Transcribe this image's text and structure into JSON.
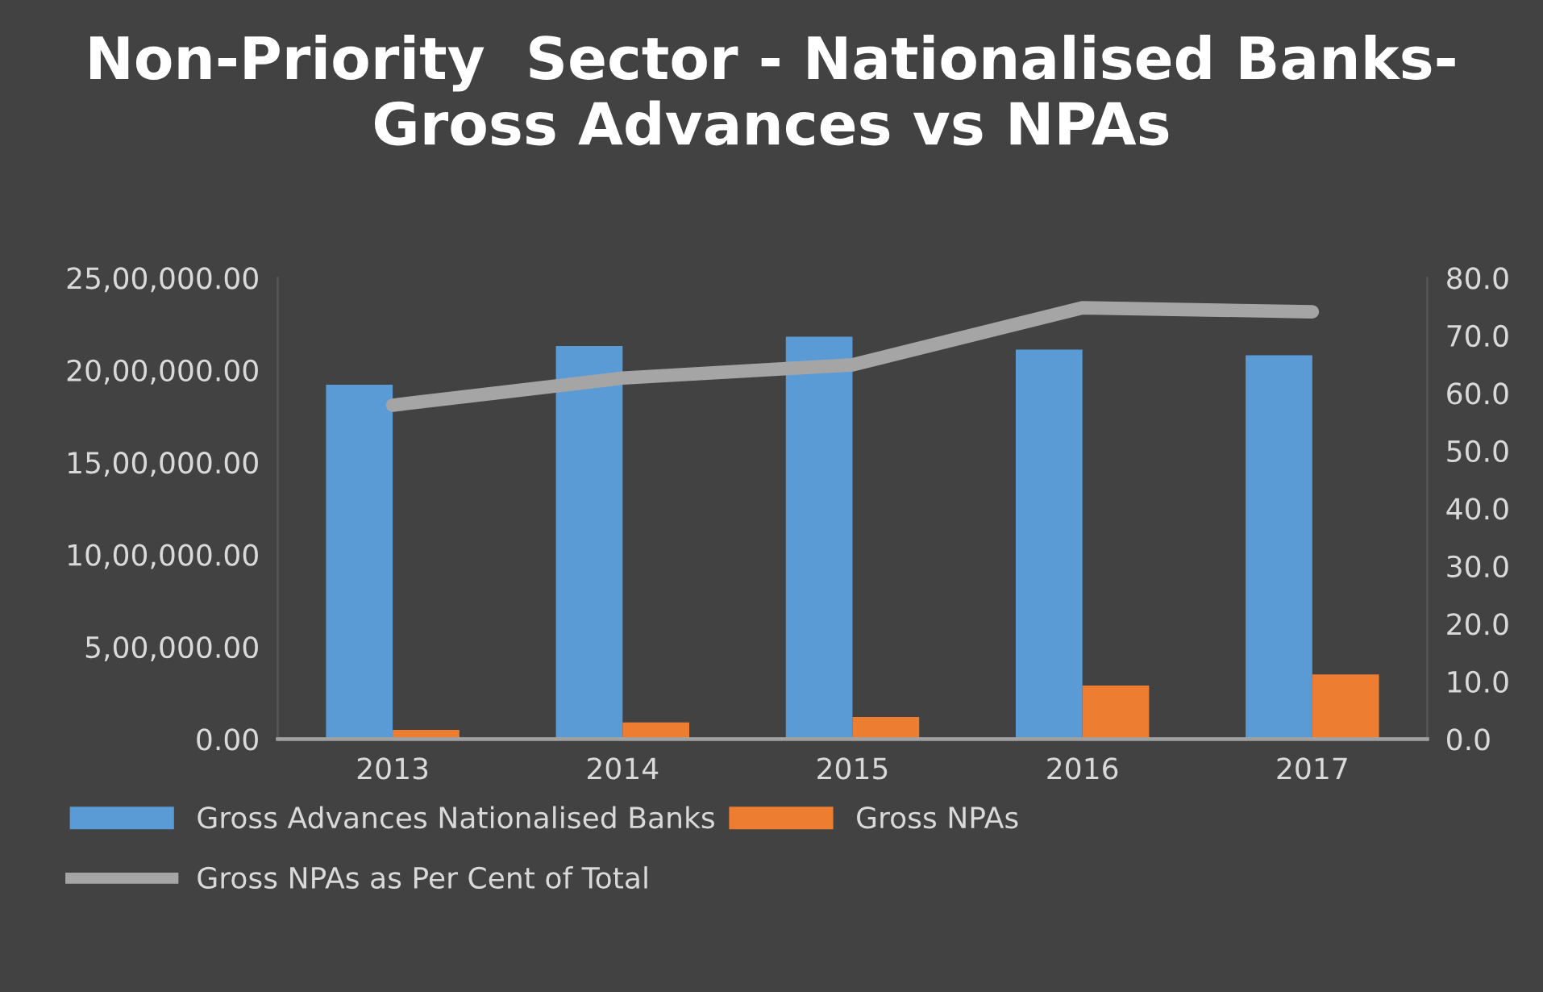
{
  "chart_data": {
    "type": "bar",
    "title": "Non-Priority  Sector - Nationalised Banks- Gross Advances vs NPAs",
    "categories": [
      "2013",
      "2014",
      "2015",
      "2016",
      "2017"
    ],
    "series": [
      {
        "name": "Gross Advances Nationalised Banks",
        "color": "#5b9bd5",
        "values": [
          1920000,
          2130000,
          2180000,
          2110000,
          2080000
        ]
      },
      {
        "name": "Gross NPAs",
        "color": "#ed7d31",
        "values": [
          50000,
          90000,
          120000,
          290000,
          350000
        ]
      },
      {
        "name": "Gross NPAs as Per Cent of Total",
        "type": "line",
        "axis": "y2",
        "color": "#a5a5a5",
        "values": [
          57.9,
          62.6,
          64.9,
          74.8,
          74.1
        ]
      }
    ],
    "ylim": [
      0,
      2500000
    ],
    "yticks": [
      {
        "value": 0,
        "label": "0.00"
      },
      {
        "value": 500000,
        "label": "5,00,000.00"
      },
      {
        "value": 1000000,
        "label": "10,00,000.00"
      },
      {
        "value": 1500000,
        "label": "15,00,000.00"
      },
      {
        "value": 2000000,
        "label": "20,00,000.00"
      },
      {
        "value": 2500000,
        "label": "25,00,000.00"
      }
    ],
    "y2lim": [
      0,
      80
    ],
    "y2ticks": [
      {
        "value": 0,
        "label": "0.0"
      },
      {
        "value": 10,
        "label": "10.0"
      },
      {
        "value": 20,
        "label": "20.0"
      },
      {
        "value": 30,
        "label": "30.0"
      },
      {
        "value": 40,
        "label": "40.0"
      },
      {
        "value": 50,
        "label": "50.0"
      },
      {
        "value": 60,
        "label": "60.0"
      },
      {
        "value": 70,
        "label": "70.0"
      },
      {
        "value": 80,
        "label": "80.0"
      }
    ],
    "legend": "bottom",
    "grid": false,
    "marker": "none",
    "line_style": "solid"
  }
}
